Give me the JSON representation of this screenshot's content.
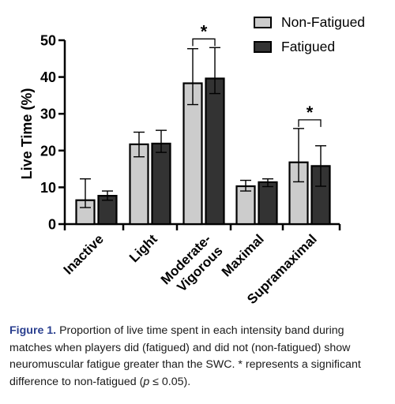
{
  "chart_data": {
    "type": "bar",
    "categories": [
      "Inactive",
      "Light",
      "Moderate-Vigorous",
      "Maximal",
      "Supramaximal"
    ],
    "category_label_lines": [
      [
        "Inactive"
      ],
      [
        "Light"
      ],
      [
        "Moderate-",
        "Vigorous"
      ],
      [
        "Maximal"
      ],
      [
        "Supramaximal"
      ]
    ],
    "ylabel": "Live Time (%)",
    "xlabel": "",
    "ylim": [
      0,
      50
    ],
    "yticks": [
      0,
      10,
      20,
      30,
      40,
      50
    ],
    "ytick_labels": [
      "0",
      "10",
      "20",
      "30",
      "40",
      "50"
    ],
    "grid": false,
    "legend_position": "top-right",
    "series": [
      {
        "name": "Non-Fatigued",
        "color": "#cccccc",
        "values": [
          6.5,
          21.7,
          38.3,
          10.3,
          16.8
        ],
        "error_low": [
          4.5,
          18.3,
          32.5,
          9.0,
          11.5
        ],
        "error_high": [
          12.3,
          25.0,
          47.7,
          11.9,
          26.0
        ]
      },
      {
        "name": "Fatigued",
        "color": "#333333",
        "values": [
          7.7,
          21.9,
          39.6,
          11.4,
          15.8
        ],
        "error_low": [
          6.5,
          19.5,
          35.5,
          10.2,
          10.3
        ],
        "error_high": [
          9.0,
          25.5,
          48.0,
          12.3,
          21.3
        ]
      }
    ],
    "significance": [
      {
        "category": "Moderate-Vigorous",
        "symbol": "*"
      },
      {
        "category": "Supramaximal",
        "symbol": "*"
      }
    ]
  },
  "caption": {
    "label": "Figure 1.",
    "text_part1": " Proportion of live time spent in each intensity band during matches when players did (fatigued) and did not (non-fatigued) show neuromuscular fatigue greater than the SWC. * represents a significant difference to non-fatigued (",
    "italic_p": "p",
    "text_part2": " ≤ 0.05)."
  }
}
